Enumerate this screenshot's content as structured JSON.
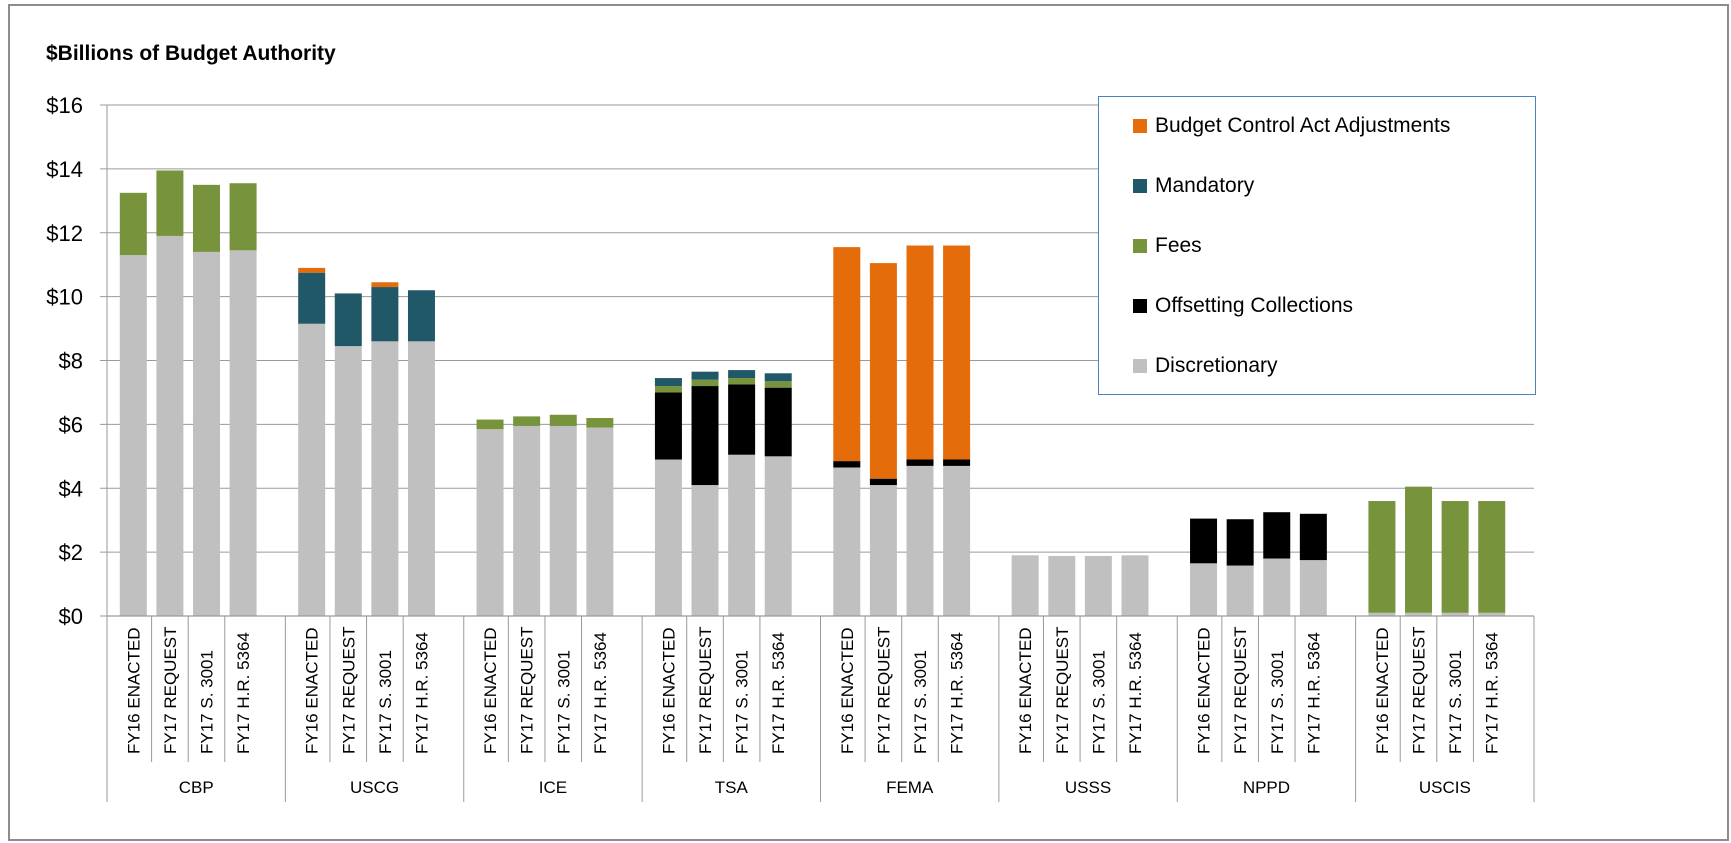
{
  "chart_data": {
    "type": "bar",
    "stacked": true,
    "title": "$Billions of Budget Authority",
    "xlabel": "",
    "ylabel": "",
    "ylim": [
      0,
      16
    ],
    "yticks": [
      "$0",
      "$2",
      "$4",
      "$6",
      "$8",
      "$10",
      "$12",
      "$14",
      "$16"
    ],
    "grid": true,
    "legend_position": "top-right",
    "groups": [
      "CBP",
      "USCG",
      "ICE",
      "TSA",
      "FEMA",
      "USSS",
      "NPPD",
      "USCIS"
    ],
    "categories": [
      "FY16 ENACTED",
      "FY17 REQUEST",
      "FY17  S. 3001",
      "FY17 H.R. 5364"
    ],
    "series": [
      {
        "name": "Discretionary",
        "color": "#c0c0c0",
        "values": [
          [
            11.3,
            11.9,
            11.4,
            11.45
          ],
          [
            9.15,
            8.45,
            8.6,
            8.6
          ],
          [
            5.85,
            5.95,
            5.95,
            5.9
          ],
          [
            4.9,
            4.1,
            5.05,
            5.0
          ],
          [
            4.65,
            4.1,
            4.7,
            4.7
          ],
          [
            1.9,
            1.88,
            1.88,
            1.9
          ],
          [
            1.65,
            1.58,
            1.8,
            1.75
          ],
          [
            0.1,
            0.1,
            0.1,
            0.1
          ]
        ]
      },
      {
        "name": "Offsetting Collections",
        "color": "#000000",
        "values": [
          [
            0,
            0,
            0,
            0
          ],
          [
            0,
            0,
            0,
            0
          ],
          [
            0,
            0,
            0,
            0
          ],
          [
            2.1,
            3.1,
            2.2,
            2.15
          ],
          [
            0.2,
            0.2,
            0.2,
            0.2
          ],
          [
            0,
            0,
            0,
            0
          ],
          [
            1.4,
            1.45,
            1.45,
            1.45
          ],
          [
            0,
            0,
            0,
            0
          ]
        ]
      },
      {
        "name": "Fees",
        "color": "#77933c",
        "values": [
          [
            1.95,
            2.05,
            2.1,
            2.1
          ],
          [
            0,
            0,
            0,
            0
          ],
          [
            0.3,
            0.3,
            0.35,
            0.3
          ],
          [
            0.2,
            0.2,
            0.2,
            0.2
          ],
          [
            0,
            0,
            0,
            0
          ],
          [
            0,
            0,
            0,
            0
          ],
          [
            0,
            0,
            0,
            0
          ],
          [
            3.5,
            3.95,
            3.5,
            3.5
          ]
        ]
      },
      {
        "name": "Mandatory",
        "color": "#215868",
        "values": [
          [
            0,
            0,
            0,
            0
          ],
          [
            1.6,
            1.65,
            1.7,
            1.6
          ],
          [
            0,
            0,
            0,
            0
          ],
          [
            0.25,
            0.25,
            0.25,
            0.25
          ],
          [
            0,
            0,
            0,
            0
          ],
          [
            0,
            0,
            0,
            0
          ],
          [
            0,
            0,
            0,
            0
          ],
          [
            0,
            0,
            0,
            0
          ]
        ]
      },
      {
        "name": "Budget Control Act Adjustments",
        "color": "#e46c0a",
        "values": [
          [
            0,
            0,
            0,
            0
          ],
          [
            0.15,
            0,
            0.15,
            0
          ],
          [
            0,
            0,
            0,
            0
          ],
          [
            0,
            0,
            0,
            0
          ],
          [
            6.7,
            6.75,
            6.7,
            6.7
          ],
          [
            0,
            0,
            0,
            0
          ],
          [
            0,
            0,
            0,
            0
          ],
          [
            0,
            0,
            0,
            0
          ]
        ]
      }
    ],
    "legend_order": [
      "Budget Control Act Adjustments",
      "Mandatory",
      "Fees",
      "Offsetting Collections",
      "Discretionary"
    ]
  }
}
